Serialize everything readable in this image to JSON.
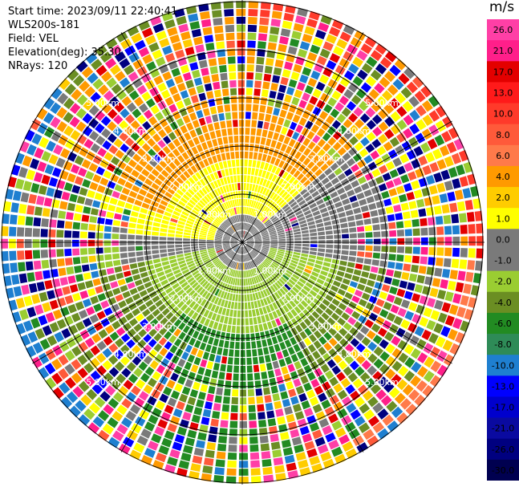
{
  "header": {
    "start_time": "Start time: 2023/09/11 22:40:41",
    "instrument": "WLS200s-181",
    "field": "Field: VEL",
    "elevation": "Elevation(deg): 35.30",
    "nrays": "NRays: 120"
  },
  "colorbar": {
    "unit": "m/s",
    "ticks": [
      "26.0",
      "21.0",
      "17.0",
      "13.0",
      "10.0",
      "8.0",
      "6.0",
      "4.0",
      "2.0",
      "1.0",
      "0.0",
      "-1.0",
      "-2.0",
      "-4.0",
      "-6.0",
      "-8.0",
      "-10.0",
      "-13.0",
      "-17.0",
      "-21.0",
      "-26.0",
      "-30.0"
    ],
    "colors": [
      "#ff3fa6",
      "#ff1f8a",
      "#e30000",
      "#ff1a1a",
      "#ff3a2a",
      "#ff5a3a",
      "#ff7a4a",
      "#ff9a00",
      "#ffcc00",
      "#ffff00",
      "#7a7a7a",
      "#7a7a7a",
      "#9acd32",
      "#6b8e23",
      "#228b22",
      "#2e8b57",
      "#1e7fd0",
      "#0000ff",
      "#0000cd",
      "#0a0aa0",
      "#000080",
      "#000050"
    ]
  },
  "range_rings": {
    "labels": [
      "1.00km",
      "2.00km",
      "3.00km",
      "4.00km",
      "5.00km"
    ]
  },
  "ppi": {
    "n_rays": 120,
    "background": "#ffffff"
  }
}
